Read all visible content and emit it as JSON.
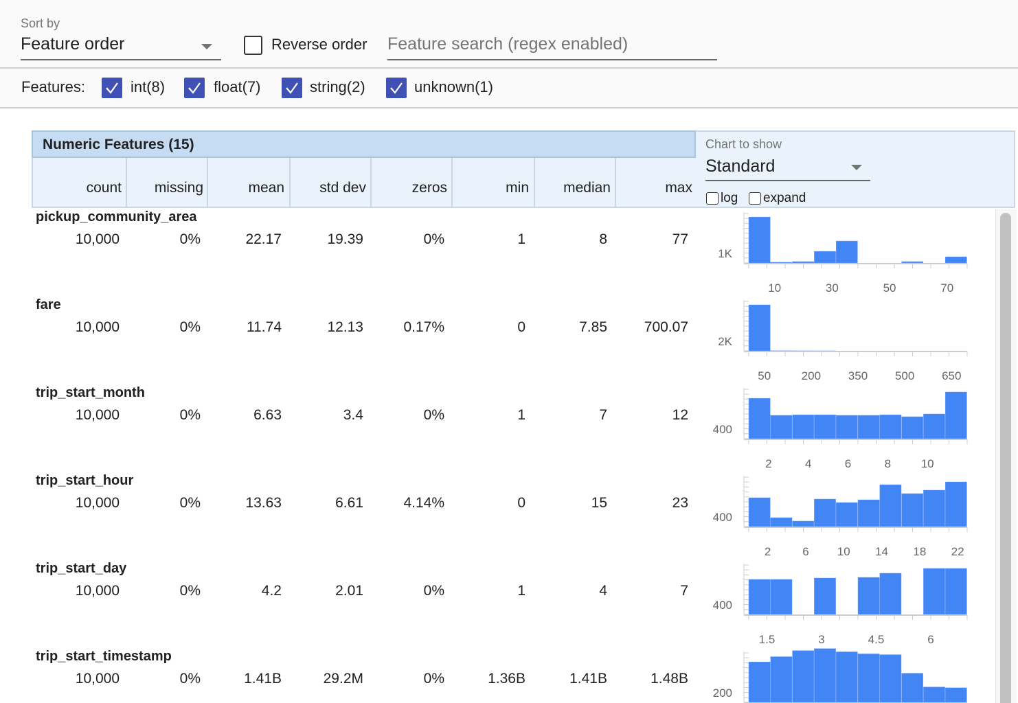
{
  "toolbar": {
    "sort_label": "Sort by",
    "sort_value": "Feature order",
    "reverse_label": "Reverse order",
    "reverse_checked": false,
    "search_placeholder": "Feature search (regex enabled)"
  },
  "features_filter": {
    "label": "Features:",
    "items": [
      {
        "label": "int(8)",
        "checked": true
      },
      {
        "label": "float(7)",
        "checked": true
      },
      {
        "label": "string(2)",
        "checked": true
      },
      {
        "label": "unknown(1)",
        "checked": true
      }
    ]
  },
  "table": {
    "title": "Numeric Features (15)",
    "columns": [
      "count",
      "missing",
      "mean",
      "std dev",
      "zeros",
      "min",
      "median",
      "max"
    ],
    "chart_label": "Chart to show",
    "chart_value": "Standard",
    "log_label": "log",
    "expand_label": "expand",
    "rows": [
      {
        "name": "pickup_community_area",
        "values": [
          "10,000",
          "0%",
          "22.17",
          "19.39",
          "0%",
          "1",
          "8",
          "77"
        ]
      },
      {
        "name": "fare",
        "values": [
          "10,000",
          "0%",
          "11.74",
          "12.13",
          "0.17%",
          "0",
          "7.85",
          "700.07"
        ]
      },
      {
        "name": "trip_start_month",
        "values": [
          "10,000",
          "0%",
          "6.63",
          "3.4",
          "0%",
          "1",
          "7",
          "12"
        ]
      },
      {
        "name": "trip_start_hour",
        "values": [
          "10,000",
          "0%",
          "13.63",
          "6.61",
          "4.14%",
          "0",
          "15",
          "23"
        ]
      },
      {
        "name": "trip_start_day",
        "values": [
          "10,000",
          "0%",
          "4.2",
          "2.01",
          "0%",
          "1",
          "4",
          "7"
        ]
      },
      {
        "name": "trip_start_timestamp",
        "values": [
          "10,000",
          "0%",
          "1.41B",
          "29.2M",
          "0%",
          "1.36B",
          "1.41B",
          "1.48B"
        ]
      }
    ]
  },
  "colors": {
    "bar": "#4285f4",
    "header": "#c6dcf2",
    "checkbox": "#3f51b5"
  },
  "chart_data": [
    {
      "type": "bar",
      "feature": "pickup_community_area",
      "xlim": [
        1,
        77
      ],
      "xticks": [
        10,
        30,
        50,
        70
      ],
      "ylabel_tick": "1K",
      "ytick_value": 1000,
      "values": [
        5150,
        77,
        150,
        1300,
        2460,
        0,
        0,
        150,
        0,
        690
      ]
    },
    {
      "type": "bar",
      "feature": "fare",
      "xlim": [
        0,
        700.07
      ],
      "xticks": [
        50,
        200,
        350,
        500,
        650
      ],
      "ylabel_tick": "2K",
      "ytick_value": 2000,
      "values": [
        9580,
        30,
        10,
        5,
        0,
        0,
        0,
        0,
        0,
        0
      ]
    },
    {
      "type": "bar",
      "feature": "trip_start_month",
      "xlim": [
        1,
        12
      ],
      "xticks": [
        2,
        4,
        6,
        8,
        10
      ],
      "ylabel_tick": "400",
      "ytick_value": 400,
      "values": [
        1470,
        850,
        870,
        870,
        850,
        850,
        870,
        800,
        900,
        1700
      ]
    },
    {
      "type": "bar",
      "feature": "trip_start_hour",
      "xlim": [
        0,
        23
      ],
      "xticks": [
        2,
        6,
        10,
        14,
        18,
        22
      ],
      "ylabel_tick": "400",
      "ytick_value": 400,
      "values": [
        1050,
        325,
        200,
        1000,
        875,
        975,
        1525,
        1200,
        1325,
        1625
      ]
    },
    {
      "type": "bar",
      "feature": "trip_start_day",
      "xlim": [
        1,
        7
      ],
      "xticks": [
        1.5,
        3,
        4.5,
        6
      ],
      "ylabel_tick": "400",
      "ytick_value": 400,
      "values": [
        1275,
        1275,
        0,
        1325,
        0,
        1350,
        1500,
        0,
        1675,
        1675
      ]
    },
    {
      "type": "bar",
      "feature": "trip_start_timestamp",
      "xlim": [
        1360000000,
        1480000000
      ],
      "xticks": [],
      "ylabel_tick": "200",
      "ytick_value": 200,
      "values": [
        1000,
        1130,
        1280,
        1330,
        1250,
        1200,
        1180,
        720,
        380,
        360
      ]
    }
  ]
}
